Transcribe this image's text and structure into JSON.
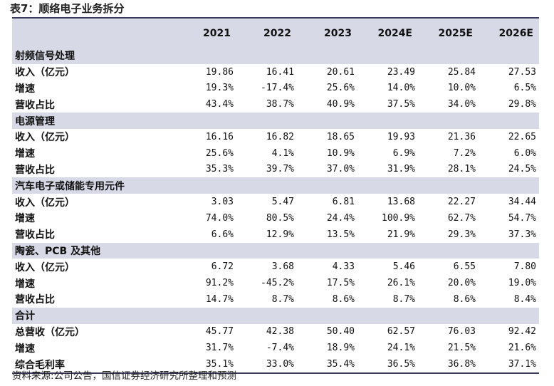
{
  "caption": "表7：顺络电子业务拆分",
  "source": "资料来源:公司公告，国信证券经济研究所整理和预测",
  "table": {
    "years": [
      "2021",
      "2022",
      "2023",
      "2024E",
      "2025E",
      "2026E"
    ],
    "sections": [
      {
        "name": "射频信号处理",
        "rows": [
          {
            "label": "收入（亿元）",
            "values": [
              "19.86",
              "16.41",
              "20.61",
              "23.49",
              "25.84",
              "27.53"
            ]
          },
          {
            "label": "增速",
            "values": [
              "19.3%",
              "-17.4%",
              "25.6%",
              "14.0%",
              "10.0%",
              "6.5%"
            ]
          },
          {
            "label": "营收占比",
            "values": [
              "43.4%",
              "38.7%",
              "40.9%",
              "37.5%",
              "34.0%",
              "29.8%"
            ]
          }
        ]
      },
      {
        "name": "电源管理",
        "rows": [
          {
            "label": "收入（亿元）",
            "values": [
              "16.16",
              "16.82",
              "18.65",
              "19.93",
              "21.36",
              "22.65"
            ]
          },
          {
            "label": "增速",
            "values": [
              "25.6%",
              "4.1%",
              "10.9%",
              "6.9%",
              "7.2%",
              "6.0%"
            ]
          },
          {
            "label": "营收占比",
            "values": [
              "35.3%",
              "39.7%",
              "37.0%",
              "31.9%",
              "28.1%",
              "24.5%"
            ]
          }
        ]
      },
      {
        "name": "汽车电子或储能专用元件",
        "rows": [
          {
            "label": "收入（亿元）",
            "values": [
              "3.03",
              "5.47",
              "6.81",
              "13.68",
              "22.27",
              "34.44"
            ]
          },
          {
            "label": "增速",
            "values": [
              "74.0%",
              "80.5%",
              "24.4%",
              "100.9%",
              "62.7%",
              "54.7%"
            ]
          },
          {
            "label": "营收占比",
            "values": [
              "6.6%",
              "12.9%",
              "13.5%",
              "21.9%",
              "29.3%",
              "37.3%"
            ]
          }
        ]
      },
      {
        "name": "陶瓷、PCB 及其他",
        "rows": [
          {
            "label": "收入（亿元）",
            "values": [
              "6.72",
              "3.68",
              "4.33",
              "5.46",
              "6.55",
              "7.80"
            ]
          },
          {
            "label": "增速",
            "values": [
              "91.2%",
              "-45.2%",
              "17.5%",
              "26.1%",
              "20.0%",
              "19.0%"
            ]
          },
          {
            "label": "营收占比",
            "values": [
              "14.7%",
              "8.7%",
              "8.6%",
              "8.7%",
              "8.6%",
              "8.4%"
            ]
          }
        ]
      },
      {
        "name": "合计",
        "rows": [
          {
            "label": "总营收（亿元）",
            "values": [
              "45.77",
              "42.38",
              "50.40",
              "62.57",
              "76.03",
              "92.42"
            ]
          },
          {
            "label": "增速",
            "values": [
              "31.7%",
              "-7.4%",
              "18.9%",
              "24.1%",
              "21.5%",
              "21.6%"
            ]
          },
          {
            "label": "综合毛利率",
            "values": [
              "35.1%",
              "33.0%",
              "35.4%",
              "36.5%",
              "36.8%",
              "37.1%"
            ]
          }
        ]
      }
    ]
  }
}
